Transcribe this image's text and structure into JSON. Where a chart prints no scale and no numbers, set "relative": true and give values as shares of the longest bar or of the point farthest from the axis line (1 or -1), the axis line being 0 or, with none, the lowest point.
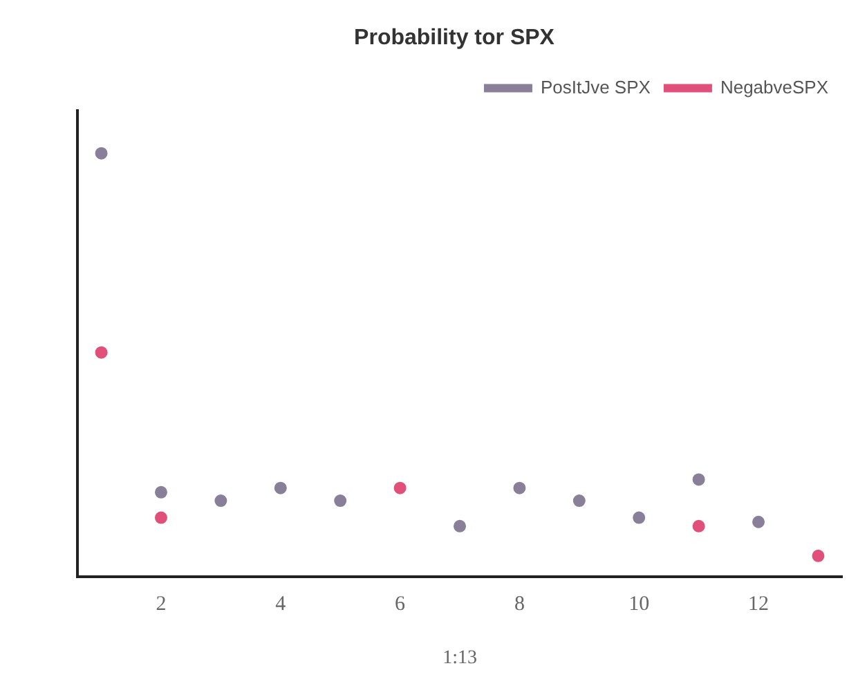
{
  "chart_data": {
    "type": "scatter",
    "title": "Probability tor SPX",
    "xlabel": "1:13",
    "relative": true,
    "x": [
      1,
      2,
      3,
      4,
      5,
      6,
      7,
      8,
      9,
      10,
      11,
      12,
      13
    ],
    "series": [
      {
        "name": "PosItJve SPX",
        "color": "#8a7f99",
        "values": [
          1,
          0.2,
          0.18,
          0.21,
          0.18,
          null,
          0.12,
          0.21,
          0.18,
          0.14,
          0.23,
          0.13,
          null
        ]
      },
      {
        "name": "NegabveSPX",
        "color": "#e0507a",
        "values": [
          0.53,
          0.14,
          null,
          null,
          null,
          0.21,
          null,
          null,
          null,
          null,
          0.12,
          null,
          0.05
        ]
      }
    ],
    "xlim": [
      0.6,
      13.4
    ],
    "xticks": [
      2,
      4,
      6,
      8,
      10,
      12
    ],
    "grid": false,
    "legend": "top right",
    "marker": "circle"
  }
}
